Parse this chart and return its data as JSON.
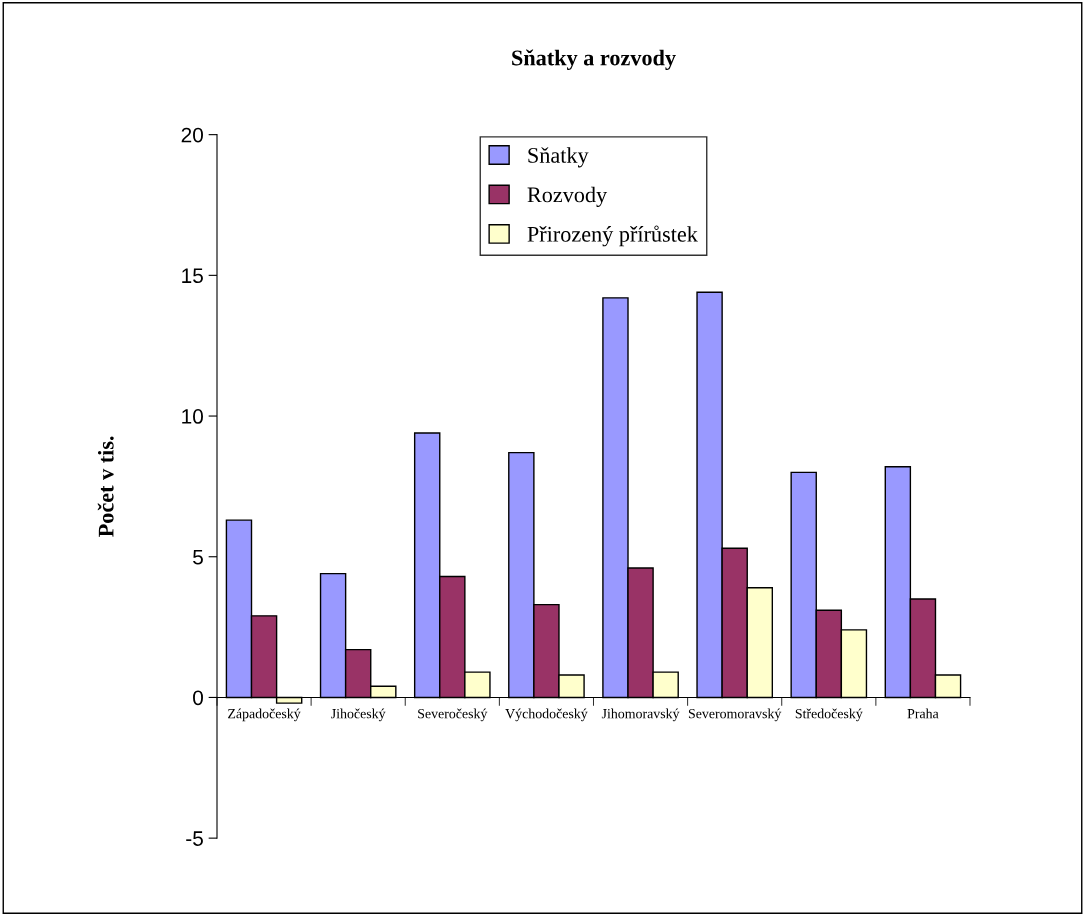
{
  "chart_data": {
    "type": "bar",
    "title": "Sňatky a rozvody",
    "ylabel": "Počet v tis.",
    "categories": [
      "Západočeský",
      "Jihočeský",
      "Severočeský",
      "Východočeský",
      "Jihomoravský",
      "Severomoravský",
      "Středočeský",
      "Praha"
    ],
    "series": [
      {
        "name": "Sňatky",
        "color": "#9999ff",
        "values": [
          6.3,
          4.4,
          9.4,
          8.7,
          14.2,
          14.4,
          8.0,
          8.2
        ]
      },
      {
        "name": "Rozvody",
        "color": "#993366",
        "values": [
          2.9,
          1.7,
          4.3,
          3.3,
          4.6,
          5.3,
          3.1,
          3.5
        ]
      },
      {
        "name": "Přirozený přírůstek",
        "color": "#ffffcc",
        "values": [
          -0.2,
          0.4,
          0.9,
          0.8,
          0.9,
          3.9,
          2.4,
          0.8
        ]
      }
    ],
    "ylim": [
      -5,
      20
    ],
    "yticks": [
      -5,
      0,
      5,
      10,
      15,
      20
    ],
    "grid": false,
    "legend": "top"
  }
}
